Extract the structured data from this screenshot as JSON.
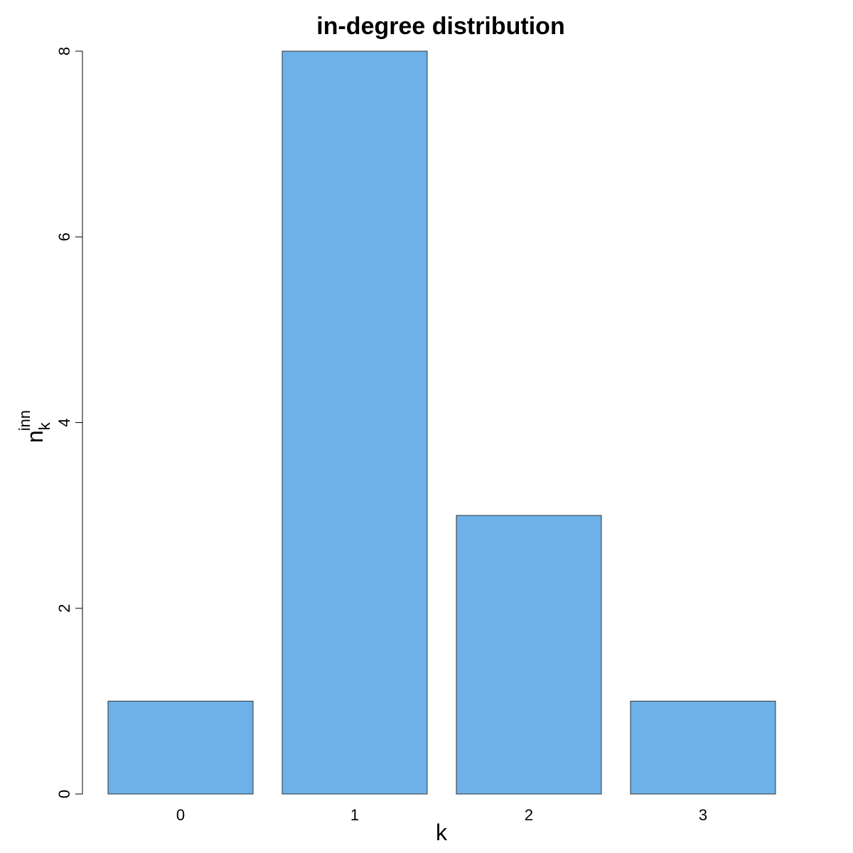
{
  "chart_data": {
    "type": "bar",
    "title": "in-degree distribution",
    "xlabel": "k",
    "ylabel": {
      "base": "n",
      "subscript": "k",
      "superscript": "inn"
    },
    "categories": [
      "0",
      "1",
      "2",
      "3"
    ],
    "values": [
      1,
      8,
      3,
      1
    ],
    "ylim": [
      0,
      8
    ],
    "yticks": [
      0,
      2,
      4,
      6,
      8
    ],
    "grid": false,
    "bar_color": "#6DB1E8",
    "bar_border_color": "#333333"
  }
}
